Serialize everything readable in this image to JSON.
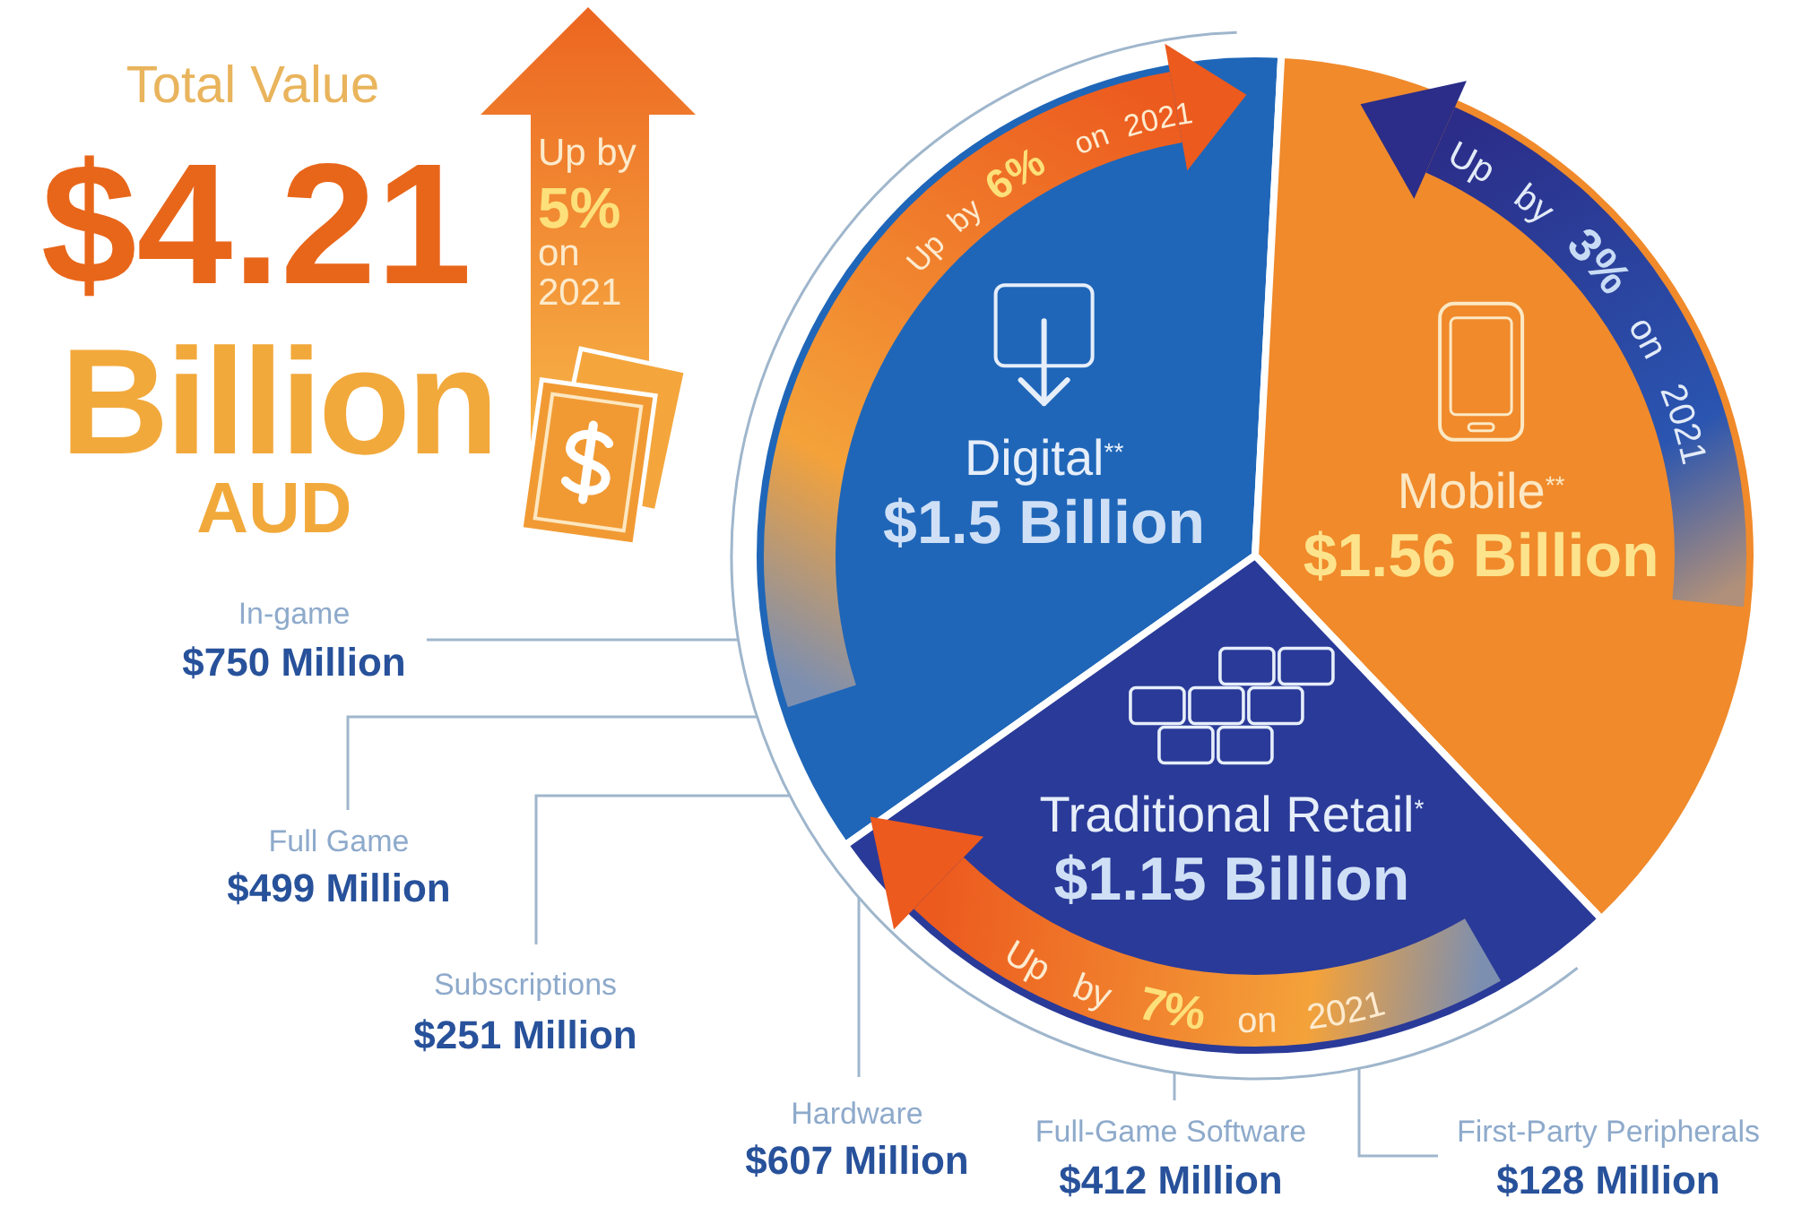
{
  "chart_data": {
    "type": "pie",
    "title": "Total Value",
    "subtitle": "$4.21 Billion AUD",
    "categories": [
      "Digital$^{**}$",
      "Mobile$^{**}$",
      "Traditional Retail$^{*}$"
    ],
    "values": [
      1.5,
      1.56,
      1.15
    ],
    "colors": [
      "#1f66b8",
      "#f08a2b",
      "#2a3a98"
    ],
    "value_labels": [
      "$1.5 Billion",
      "$1.56 Billion",
      "$1.15 Billion"
    ],
    "annotations": [
      "Up by 5% on 2021",
      "Up by 6% on 2021",
      "Up by 3% on 2021",
      "Up by 7% on 2021",
      "In-game $750 Million",
      "Full Game $499 Million",
      "Subscriptions $251 Million",
      "Hardware $607 Million",
      "Full-Game Software $412 Million",
      "First-Party Peripherals $128 Million"
    ]
  }
}
